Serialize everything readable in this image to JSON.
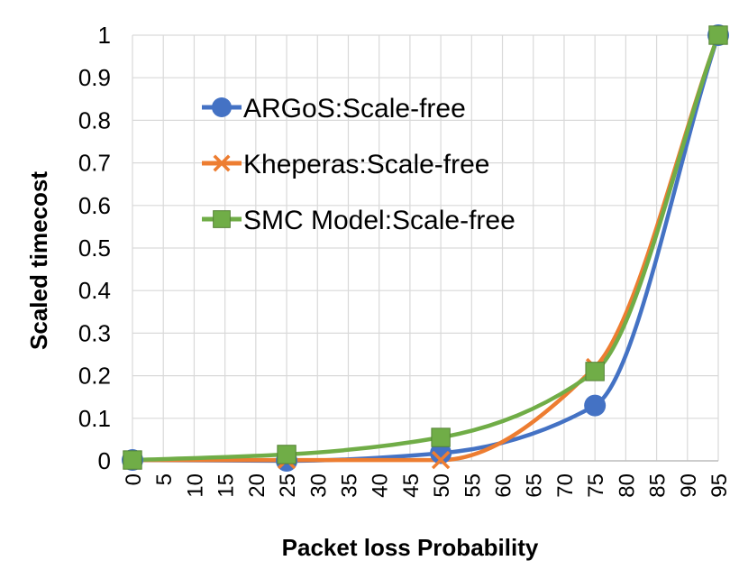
{
  "chart_data": {
    "type": "line",
    "xlabel": "Packet loss Probability",
    "ylabel": "Scaled  timecost",
    "xlim": [
      0,
      95
    ],
    "ylim": [
      0,
      1
    ],
    "x_ticks": [
      "0",
      "5",
      "10",
      "15",
      "20",
      "25",
      "30",
      "35",
      "40",
      "45",
      "50",
      "55",
      "60",
      "65",
      "70",
      "75",
      "80",
      "85",
      "90",
      "95"
    ],
    "y_ticks": [
      "0",
      "0.1",
      "0.2",
      "0.3",
      "0.4",
      "0.5",
      "0.6",
      "0.7",
      "0.8",
      "0.9",
      "1"
    ],
    "grid": true,
    "smooth": true,
    "legend_position": "upper-left",
    "series": [
      {
        "name": "ARGoS:Scale-free",
        "color": "#4472c4",
        "marker": "circle",
        "x": [
          0,
          25,
          50,
          75,
          95
        ],
        "y": [
          0.002,
          0.0,
          0.018,
          0.13,
          1.0
        ]
      },
      {
        "name": "Kheperas:Scale-free",
        "color": "#ed7d31",
        "marker": "x",
        "x": [
          0,
          25,
          50,
          75,
          95
        ],
        "y": [
          0.002,
          0.002,
          0.002,
          0.22,
          1.0
        ]
      },
      {
        "name": "SMC Model:Scale-free",
        "color": "#70ad47",
        "marker": "square",
        "x": [
          0,
          25,
          50,
          75,
          95
        ],
        "y": [
          0.002,
          0.015,
          0.055,
          0.21,
          1.0
        ]
      }
    ]
  }
}
